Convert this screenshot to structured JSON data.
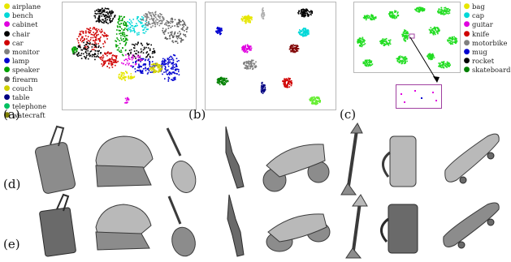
{
  "panel_labels": {
    "a": "(a)",
    "b": "(b)",
    "c": "(c)",
    "d": "(d)",
    "e": "(e)"
  },
  "legend_a": [
    {
      "label": "airplane",
      "color": "#e6e600"
    },
    {
      "label": "bench",
      "color": "#00d8d8"
    },
    {
      "label": "cabinet",
      "color": "#e000e0"
    },
    {
      "label": "chair",
      "color": "#000000"
    },
    {
      "label": "car",
      "color": "#d00000"
    },
    {
      "label": "monitor",
      "color": "#808080"
    },
    {
      "label": "lamp",
      "color": "#0000d0"
    },
    {
      "label": "speaker",
      "color": "#00a000"
    },
    {
      "label": "firearm",
      "color": "#606060"
    },
    {
      "label": "couch",
      "color": "#d0d000"
    },
    {
      "label": "table",
      "color": "#000080"
    },
    {
      "label": "telephone",
      "color": "#00c060"
    },
    {
      "label": "watecraft",
      "color": "#808000"
    }
  ],
  "legend_c": [
    {
      "label": "bag",
      "color": "#e6e600"
    },
    {
      "label": "cap",
      "color": "#00d8d8"
    },
    {
      "label": "guitar",
      "color": "#e000e0"
    },
    {
      "label": "knife",
      "color": "#d00000"
    },
    {
      "label": "motorbike",
      "color": "#808080"
    },
    {
      "label": "mug",
      "color": "#0000d0"
    },
    {
      "label": "rocket",
      "color": "#000000"
    },
    {
      "label": "skateboard",
      "color": "#008000"
    }
  ],
  "colors": {
    "border": "#b8b8b8",
    "zoom_box": "#a040a0",
    "shape_fill": "#8c8c8c"
  }
}
